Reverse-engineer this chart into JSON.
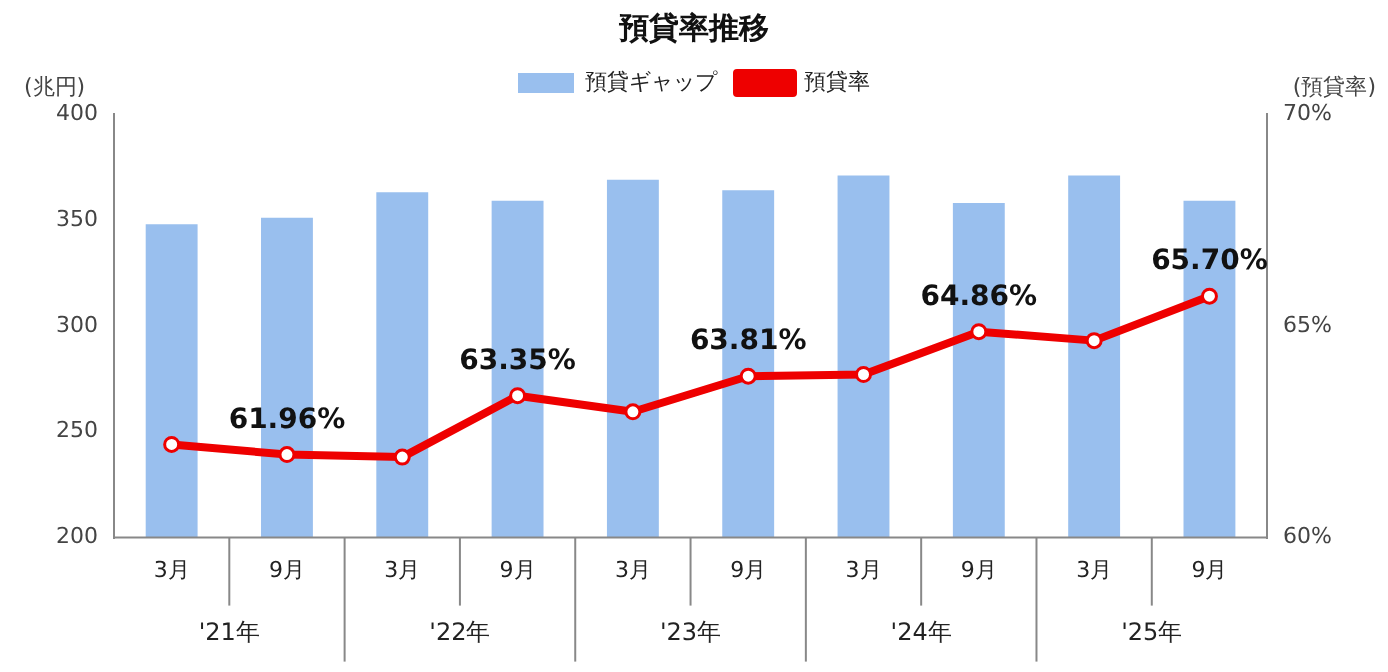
{
  "chart_data": {
    "type": "bar",
    "title": "預貸率推移",
    "ylabel": "(兆円)",
    "y2label": "(預貸率)",
    "categories": [
      "3月",
      "9月",
      "3月",
      "9月",
      "3月",
      "9月",
      "3月",
      "9月",
      "3月",
      "9月"
    ],
    "annotations": [
      "'21年",
      "'22年",
      "'23年",
      "'24年",
      "'25年"
    ],
    "series": [
      {
        "name": "預貸ギャップ",
        "color": "#99bfee",
        "values": [
          348,
          351,
          363,
          359,
          369,
          364,
          371,
          358,
          371,
          359
        ]
      },
      {
        "name": "預貸率",
        "type": "line",
        "axis": "y2",
        "color": "#ee0000",
        "marker": "circle",
        "values": [
          62.2,
          61.96,
          61.9,
          63.35,
          62.97,
          63.81,
          63.85,
          64.86,
          64.65,
          65.7
        ],
        "value_labels": [
          null,
          "61.96%",
          null,
          "63.35%",
          null,
          "63.81%",
          null,
          "64.86%",
          null,
          "65.70%"
        ]
      }
    ],
    "ylim": [
      200,
      400
    ],
    "yticks": [
      200,
      250,
      300,
      350,
      400
    ],
    "y2lim": [
      60,
      70
    ],
    "y2ticks": [
      {
        "value": 60,
        "label": "60%"
      },
      {
        "value": 65,
        "label": "65%"
      },
      {
        "value": 70,
        "label": "70%"
      }
    ],
    "grid": false,
    "legend": "top"
  }
}
